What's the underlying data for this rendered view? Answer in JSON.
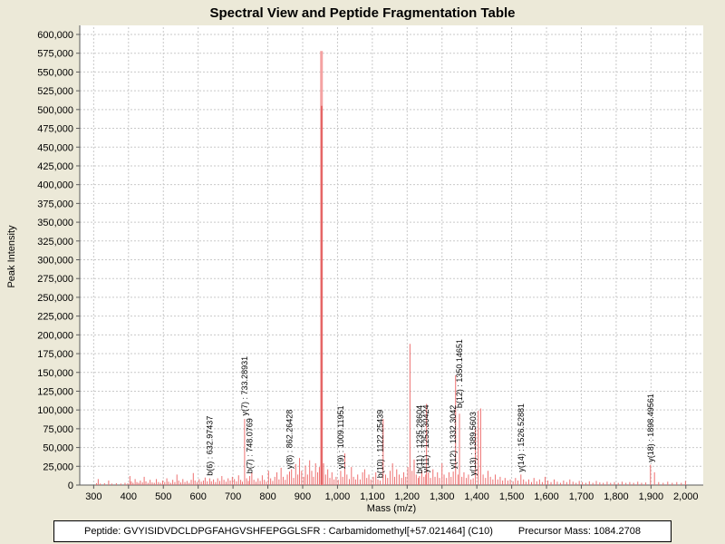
{
  "title": "Spectral View and Peptide Fragmentation Table",
  "footer": {
    "peptide_text": "Peptide: GVYISIDVDCLDPGFAHGVSHFEPGGLSFR : Carbamidomethyl[+57.021464] (C10)",
    "precursor_text": "Precursor Mass: 1084.2708"
  },
  "chart_data": {
    "type": "bar",
    "title": "Spectral View and Peptide Fragmentation Table",
    "xlabel": "Mass (m/z)",
    "ylabel": "Peak Intensity",
    "xlim": [
      260,
      2050
    ],
    "ylim": [
      0,
      600000
    ],
    "x_ticks": [
      300,
      400,
      500,
      600,
      700,
      800,
      900,
      1000,
      1100,
      1200,
      1300,
      1400,
      1500,
      1600,
      1700,
      1800,
      1900,
      2000
    ],
    "y_tick_step": 25000,
    "grid": true,
    "legend": "none",
    "colors": {
      "background": "#ece9d8",
      "plot_background": "#ffffff",
      "grid": "#c9c9c9",
      "axis": "#5a5a5a",
      "tick_text": "#000000",
      "peak": "#ee7070",
      "peak_main": "#f4a2a2",
      "peak_main_core": "#e05555",
      "annotation_text": "#000000"
    },
    "annotations": [
      {
        "label": "b(6) : 632.97437",
        "mz": 632.97437,
        "anchor": 10000
      },
      {
        "label": "y(7) : 733.28931",
        "mz": 733.28931,
        "anchor": 90000
      },
      {
        "label": "b(7) : 748.0769",
        "mz": 748.0769,
        "anchor": 13000
      },
      {
        "label": "y(8) : 862.26428",
        "mz": 862.26428,
        "anchor": 19000
      },
      {
        "label": "y(9) : 1009.11951",
        "mz": 1009.11951,
        "anchor": 19000
      },
      {
        "label": "b(10) : 1122.25439",
        "mz": 1122.25439,
        "anchor": 7000
      },
      {
        "label": "b(11) : 1235.28604",
        "mz": 1235.28604,
        "anchor": 13000
      },
      {
        "label": "y(11) : 1253.30424",
        "mz": 1253.30424,
        "anchor": 14000
      },
      {
        "label": "y(12) : 1332.3042",
        "mz": 1332.3042,
        "anchor": 19000
      },
      {
        "label": "b(12) : 1350.14651",
        "mz": 1350.14651,
        "anchor": 100000
      },
      {
        "label": "y(13) : 1389.5603",
        "mz": 1389.5603,
        "anchor": 10000
      },
      {
        "label": "y(14) : 1526.52881",
        "mz": 1526.52881,
        "anchor": 15000
      },
      {
        "label": "y(18) : 1898.49561",
        "mz": 1898.49561,
        "anchor": 28000
      }
    ],
    "peaks": [
      [
        308,
        2500
      ],
      [
        313,
        8000
      ],
      [
        319,
        2000
      ],
      [
        331,
        2500
      ],
      [
        343,
        6000
      ],
      [
        352,
        2000
      ],
      [
        365,
        2500
      ],
      [
        378,
        2000
      ],
      [
        390,
        3000
      ],
      [
        398,
        2500
      ],
      [
        404,
        12000
      ],
      [
        408,
        5000
      ],
      [
        413,
        3000
      ],
      [
        419,
        8000
      ],
      [
        424,
        4000
      ],
      [
        429,
        3000
      ],
      [
        434,
        6000
      ],
      [
        440,
        3500
      ],
      [
        445,
        11000
      ],
      [
        450,
        5000
      ],
      [
        456,
        3000
      ],
      [
        462,
        7000
      ],
      [
        468,
        3500
      ],
      [
        474,
        3000
      ],
      [
        480,
        8000
      ],
      [
        486,
        4000
      ],
      [
        492,
        3000
      ],
      [
        498,
        6000
      ],
      [
        504,
        4000
      ],
      [
        510,
        9000
      ],
      [
        515,
        4500
      ],
      [
        521,
        3000
      ],
      [
        527,
        7000
      ],
      [
        533,
        4000
      ],
      [
        539,
        14000
      ],
      [
        544,
        6000
      ],
      [
        550,
        3500
      ],
      [
        556,
        8000
      ],
      [
        562,
        4000
      ],
      [
        568,
        5500
      ],
      [
        574,
        3000
      ],
      [
        580,
        7000
      ],
      [
        586,
        16000
      ],
      [
        591,
        6000
      ],
      [
        597,
        4000
      ],
      [
        603,
        8000
      ],
      [
        609,
        4500
      ],
      [
        615,
        6000
      ],
      [
        620,
        10000
      ],
      [
        626,
        5000
      ],
      [
        632.97437,
        9000
      ],
      [
        638,
        5000
      ],
      [
        644,
        7500
      ],
      [
        650,
        4000
      ],
      [
        656,
        9000
      ],
      [
        662,
        5500
      ],
      [
        668,
        12000
      ],
      [
        674,
        7000
      ],
      [
        680,
        4500
      ],
      [
        686,
        9000
      ],
      [
        692,
        6000
      ],
      [
        698,
        11000
      ],
      [
        704,
        8000
      ],
      [
        710,
        5000
      ],
      [
        716,
        13000
      ],
      [
        722,
        7000
      ],
      [
        727,
        4500
      ],
      [
        733.28931,
        88000
      ],
      [
        739,
        9000
      ],
      [
        744,
        5500
      ],
      [
        748.0769,
        12000
      ],
      [
        754,
        17000
      ],
      [
        760,
        7000
      ],
      [
        766,
        4500
      ],
      [
        772,
        9000
      ],
      [
        778,
        5500
      ],
      [
        784,
        13000
      ],
      [
        790,
        7000
      ],
      [
        796,
        4500
      ],
      [
        802,
        19000
      ],
      [
        808,
        9000
      ],
      [
        814,
        5500
      ],
      [
        820,
        11000
      ],
      [
        826,
        17000
      ],
      [
        832,
        7500
      ],
      [
        838,
        23000
      ],
      [
        844,
        11000
      ],
      [
        850,
        7000
      ],
      [
        856,
        14000
      ],
      [
        862.26428,
        18000
      ],
      [
        868,
        21000
      ],
      [
        874,
        9500
      ],
      [
        880,
        28000
      ],
      [
        886,
        14000
      ],
      [
        891,
        36000
      ],
      [
        897,
        19000
      ],
      [
        903,
        11000
      ],
      [
        908,
        26000
      ],
      [
        914,
        14000
      ],
      [
        920,
        33000
      ],
      [
        926,
        19000
      ],
      [
        931,
        11000
      ],
      [
        937,
        29000
      ],
      [
        943,
        17000
      ],
      [
        948,
        24000
      ],
      [
        954,
        578000,
        1
      ],
      [
        954.5,
        505000,
        2
      ],
      [
        960,
        29000
      ],
      [
        966,
        14000
      ],
      [
        972,
        21000
      ],
      [
        978,
        9500
      ],
      [
        984,
        17000
      ],
      [
        990,
        7500
      ],
      [
        996,
        11000
      ],
      [
        1002,
        7000
      ],
      [
        1009.11951,
        19000
      ],
      [
        1015,
        11000
      ],
      [
        1021,
        42000
      ],
      [
        1027,
        14000
      ],
      [
        1034,
        8000
      ],
      [
        1040,
        24000
      ],
      [
        1046,
        11000
      ],
      [
        1052,
        7500
      ],
      [
        1058,
        14000
      ],
      [
        1065,
        7500
      ],
      [
        1072,
        17000
      ],
      [
        1078,
        21000
      ],
      [
        1084,
        9500
      ],
      [
        1090,
        14000
      ],
      [
        1096,
        7500
      ],
      [
        1103,
        11000
      ],
      [
        1110,
        17000
      ],
      [
        1116,
        7500
      ],
      [
        1122.25439,
        6000
      ],
      [
        1131,
        88000
      ],
      [
        1138,
        14000
      ],
      [
        1144,
        9500
      ],
      [
        1151,
        19000
      ],
      [
        1158,
        29000
      ],
      [
        1164,
        11000
      ],
      [
        1170,
        21000
      ],
      [
        1177,
        14000
      ],
      [
        1184,
        9500
      ],
      [
        1190,
        17000
      ],
      [
        1196,
        11000
      ],
      [
        1202,
        24000
      ],
      [
        1208,
        188000
      ],
      [
        1214,
        19000
      ],
      [
        1220,
        34000
      ],
      [
        1226,
        14000
      ],
      [
        1232,
        9500
      ],
      [
        1235.28604,
        12000
      ],
      [
        1242,
        19000
      ],
      [
        1248,
        11000
      ],
      [
        1253.30424,
        14000
      ],
      [
        1255.5,
        108000
      ],
      [
        1261,
        17000
      ],
      [
        1267,
        9500
      ],
      [
        1274,
        21000
      ],
      [
        1280,
        11000
      ],
      [
        1287,
        17000
      ],
      [
        1293,
        9500
      ],
      [
        1300,
        29000
      ],
      [
        1306,
        14000
      ],
      [
        1313,
        9500
      ],
      [
        1320,
        17000
      ],
      [
        1326,
        11000
      ],
      [
        1332.3042,
        18000
      ],
      [
        1339,
        146000
      ],
      [
        1346,
        14000
      ],
      [
        1350.14651,
        95000
      ],
      [
        1357,
        11000
      ],
      [
        1363,
        17000
      ],
      [
        1370,
        9500
      ],
      [
        1376,
        14000
      ],
      [
        1383,
        7500
      ],
      [
        1389.5603,
        9000
      ],
      [
        1396,
        76000
      ],
      [
        1404,
        99000
      ],
      [
        1411,
        102000
      ],
      [
        1418,
        14000
      ],
      [
        1425,
        9500
      ],
      [
        1432,
        19000
      ],
      [
        1439,
        11000
      ],
      [
        1446,
        7500
      ],
      [
        1453,
        14000
      ],
      [
        1460,
        7500
      ],
      [
        1467,
        11000
      ],
      [
        1474,
        6000
      ],
      [
        1481,
        9500
      ],
      [
        1489,
        6000
      ],
      [
        1496,
        7500
      ],
      [
        1504,
        5000
      ],
      [
        1511,
        9500
      ],
      [
        1518,
        6000
      ],
      [
        1526.52881,
        14000
      ],
      [
        1534,
        7500
      ],
      [
        1541,
        4500
      ],
      [
        1549,
        7500
      ],
      [
        1557,
        4000
      ],
      [
        1564,
        9500
      ],
      [
        1572,
        5000
      ],
      [
        1580,
        7500
      ],
      [
        1588,
        4000
      ],
      [
        1596,
        11000
      ],
      [
        1604,
        6000
      ],
      [
        1613,
        4000
      ],
      [
        1622,
        7500
      ],
      [
        1631,
        4500
      ],
      [
        1640,
        3000
      ],
      [
        1649,
        6000
      ],
      [
        1658,
        4000
      ],
      [
        1667,
        7500
      ],
      [
        1676,
        4500
      ],
      [
        1685,
        3000
      ],
      [
        1694,
        5500
      ],
      [
        1703,
        4000
      ],
      [
        1713,
        3000
      ],
      [
        1723,
        5000
      ],
      [
        1733,
        3000
      ],
      [
        1743,
        5500
      ],
      [
        1753,
        3500
      ],
      [
        1763,
        3000
      ],
      [
        1774,
        4500
      ],
      [
        1784,
        3000
      ],
      [
        1795,
        4000
      ],
      [
        1806,
        3000
      ],
      [
        1817,
        4500
      ],
      [
        1828,
        3000
      ],
      [
        1839,
        4000
      ],
      [
        1850,
        3000
      ],
      [
        1862,
        4500
      ],
      [
        1873,
        3000
      ],
      [
        1885,
        3500
      ],
      [
        1898.49561,
        27000
      ],
      [
        1910,
        17000
      ],
      [
        1922,
        4000
      ],
      [
        1935,
        3000
      ],
      [
        1948,
        4500
      ],
      [
        1961,
        3000
      ],
      [
        1974,
        4000
      ],
      [
        1987,
        3000
      ],
      [
        1999,
        5500
      ]
    ]
  }
}
